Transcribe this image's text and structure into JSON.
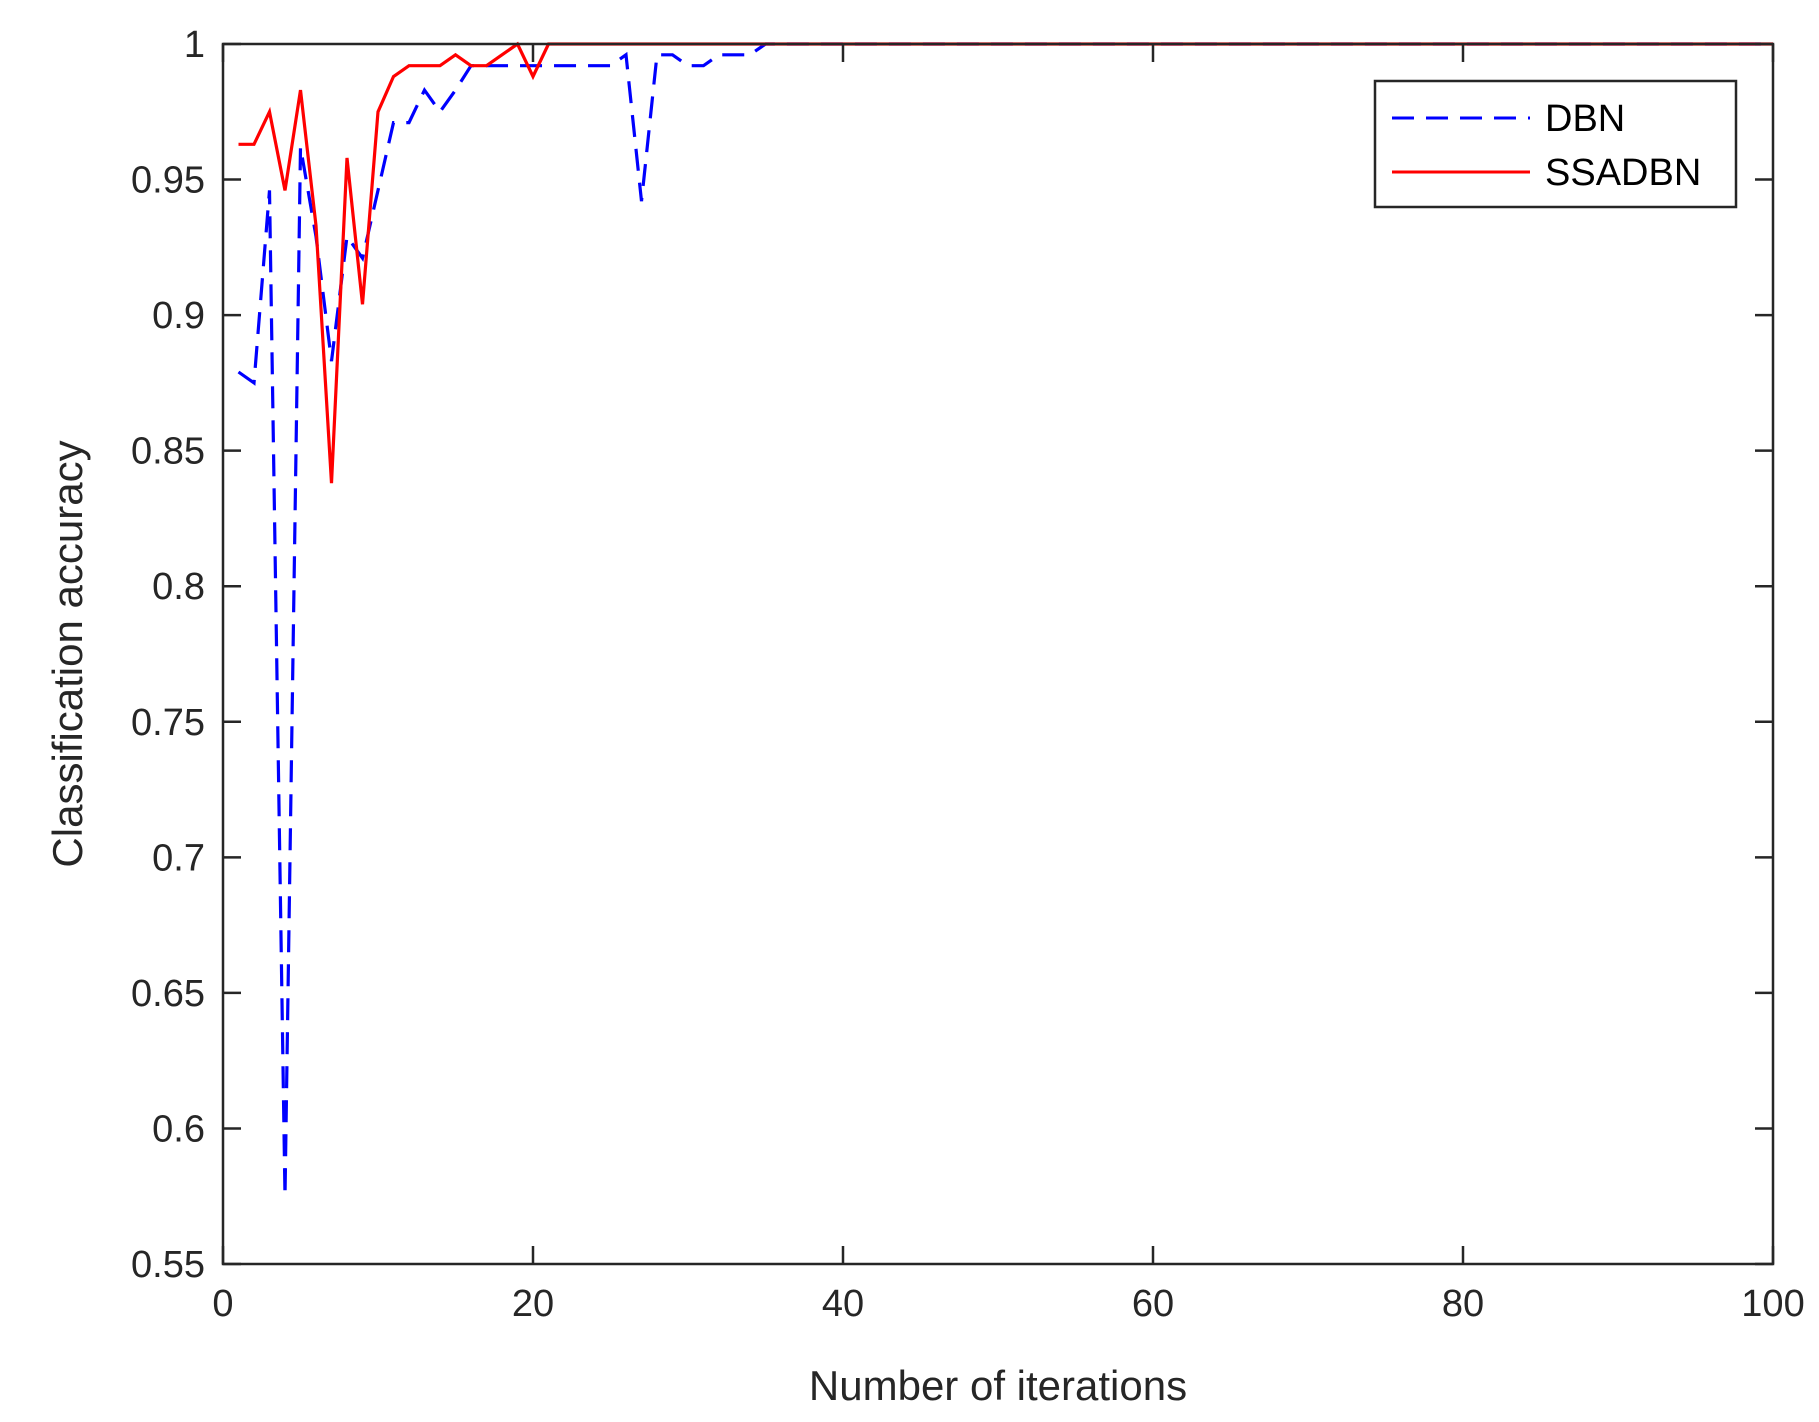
{
  "chart_data": {
    "type": "line",
    "xlabel": "Number of iterations",
    "ylabel": "Classification accuracy",
    "xlim": [
      0,
      100
    ],
    "ylim": [
      0.55,
      1
    ],
    "xticks": [
      0,
      20,
      40,
      60,
      80,
      100
    ],
    "yticks": [
      0.55,
      0.6,
      0.65,
      0.7,
      0.75,
      0.8,
      0.85,
      0.9,
      0.95,
      1
    ],
    "xtick_labels": [
      "0",
      "20",
      "40",
      "60",
      "80",
      "100"
    ],
    "ytick_labels": [
      "0.55",
      "0.6",
      "0.65",
      "0.7",
      "0.75",
      "0.8",
      "0.85",
      "0.9",
      "0.95",
      "1"
    ],
    "grid": false,
    "legend_position": "top-right",
    "series": [
      {
        "name": "DBN",
        "color": "#0000ff",
        "style": "dashed",
        "x": [
          1,
          2,
          3,
          4,
          5,
          6,
          7,
          8,
          9,
          10,
          11,
          12,
          13,
          14,
          15,
          16,
          17,
          18,
          19,
          20,
          21,
          22,
          23,
          24,
          25,
          26,
          27,
          28,
          29,
          30,
          31,
          32,
          33,
          34,
          35,
          36,
          37,
          38,
          39,
          40,
          41,
          42,
          43,
          44,
          45,
          46,
          47,
          48,
          49,
          50,
          51,
          52,
          53,
          54,
          55,
          56,
          57,
          58,
          59,
          60,
          61,
          62,
          63,
          64,
          65,
          66,
          67,
          68,
          69,
          70,
          71,
          72,
          73,
          74,
          75,
          76,
          77,
          78,
          79,
          80,
          81,
          82,
          83,
          84,
          85,
          86,
          87,
          88,
          89,
          90,
          91,
          92,
          93,
          94,
          95,
          96,
          97,
          98,
          99,
          100
        ],
        "values": [
          0.879,
          0.875,
          0.946,
          0.575,
          0.962,
          0.929,
          0.883,
          0.929,
          0.921,
          0.946,
          0.971,
          0.971,
          0.983,
          0.975,
          0.983,
          0.992,
          0.992,
          0.992,
          0.992,
          0.992,
          0.992,
          0.992,
          0.992,
          0.992,
          0.992,
          0.996,
          0.942,
          0.996,
          0.996,
          0.992,
          0.992,
          0.996,
          0.996,
          0.996,
          1,
          1,
          1,
          1,
          1,
          1,
          1,
          1,
          1,
          1,
          1,
          1,
          1,
          1,
          1,
          1,
          1,
          1,
          1,
          1,
          1,
          1,
          1,
          1,
          1,
          1,
          1,
          1,
          1,
          1,
          1,
          1,
          1,
          1,
          1,
          1,
          1,
          1,
          1,
          1,
          1,
          1,
          1,
          1,
          1,
          1,
          1,
          1,
          1,
          1,
          1,
          1,
          1,
          1,
          1,
          1,
          1,
          1,
          1,
          1,
          1,
          1,
          1,
          1,
          1,
          1
        ]
      },
      {
        "name": "SSADBN",
        "color": "#ff0000",
        "style": "solid",
        "x": [
          1,
          2,
          3,
          4,
          5,
          6,
          7,
          8,
          9,
          10,
          11,
          12,
          13,
          14,
          15,
          16,
          17,
          18,
          19,
          20,
          21,
          22,
          23,
          24,
          25,
          26,
          27,
          28,
          29,
          30,
          31,
          32,
          33,
          34,
          35,
          36,
          37,
          38,
          39,
          40,
          41,
          42,
          43,
          44,
          45,
          46,
          47,
          48,
          49,
          50,
          51,
          52,
          53,
          54,
          55,
          56,
          57,
          58,
          59,
          60,
          61,
          62,
          63,
          64,
          65,
          66,
          67,
          68,
          69,
          70,
          71,
          72,
          73,
          74,
          75,
          76,
          77,
          78,
          79,
          80,
          81,
          82,
          83,
          84,
          85,
          86,
          87,
          88,
          89,
          90,
          91,
          92,
          93,
          94,
          95,
          96,
          97,
          98,
          99,
          100
        ],
        "values": [
          0.963,
          0.963,
          0.975,
          0.946,
          0.983,
          0.933,
          0.838,
          0.958,
          0.904,
          0.975,
          0.988,
          0.992,
          0.992,
          0.992,
          0.996,
          0.992,
          0.992,
          0.996,
          1,
          0.988,
          1,
          1,
          1,
          1,
          1,
          1,
          1,
          1,
          1,
          1,
          1,
          1,
          1,
          1,
          1,
          1,
          1,
          1,
          1,
          1,
          1,
          1,
          1,
          1,
          1,
          1,
          1,
          1,
          1,
          1,
          1,
          1,
          1,
          1,
          1,
          1,
          1,
          1,
          1,
          1,
          1,
          1,
          1,
          1,
          1,
          1,
          1,
          1,
          1,
          1,
          1,
          1,
          1,
          1,
          1,
          1,
          1,
          1,
          1,
          1,
          1,
          1,
          1,
          1,
          1,
          1,
          1,
          1,
          1,
          1,
          1,
          1,
          1,
          1,
          1,
          1,
          1,
          1,
          1,
          1
        ]
      }
    ]
  }
}
